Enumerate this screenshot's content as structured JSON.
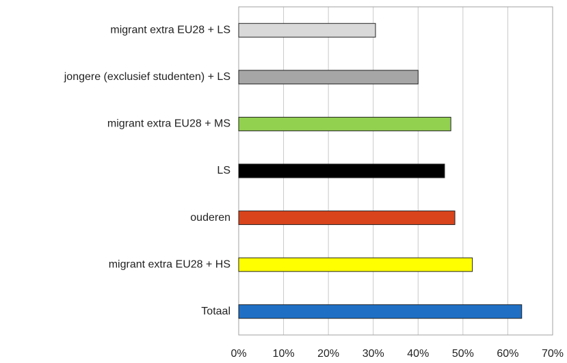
{
  "chart_data": {
    "type": "barh",
    "categories": [
      "migrant extra EU28 + LS",
      "jongere (exclusief studenten) + LS",
      "migrant extra EU28 + MS",
      "LS",
      "ouderen",
      "migrant extra EU28 + HS",
      "Totaal"
    ],
    "values": [
      30.5,
      40,
      47.3,
      45.9,
      48.2,
      52.1,
      63.1
    ],
    "colors": [
      "#d9d9d9",
      "#a6a6a6",
      "#92d050",
      "#000000",
      "#d9441c",
      "#ffff00",
      "#1f6fc5"
    ],
    "xlim": [
      0,
      70
    ],
    "xticks": [
      {
        "value": 0,
        "label": "0%"
      },
      {
        "value": 10,
        "label": "10%"
      },
      {
        "value": 20,
        "label": "20%"
      },
      {
        "value": 30,
        "label": "30%"
      },
      {
        "value": 40,
        "label": "40%"
      },
      {
        "value": 50,
        "label": "50%"
      },
      {
        "value": 60,
        "label": "60%"
      },
      {
        "value": 70,
        "label": "70%"
      }
    ],
    "grid": true
  }
}
